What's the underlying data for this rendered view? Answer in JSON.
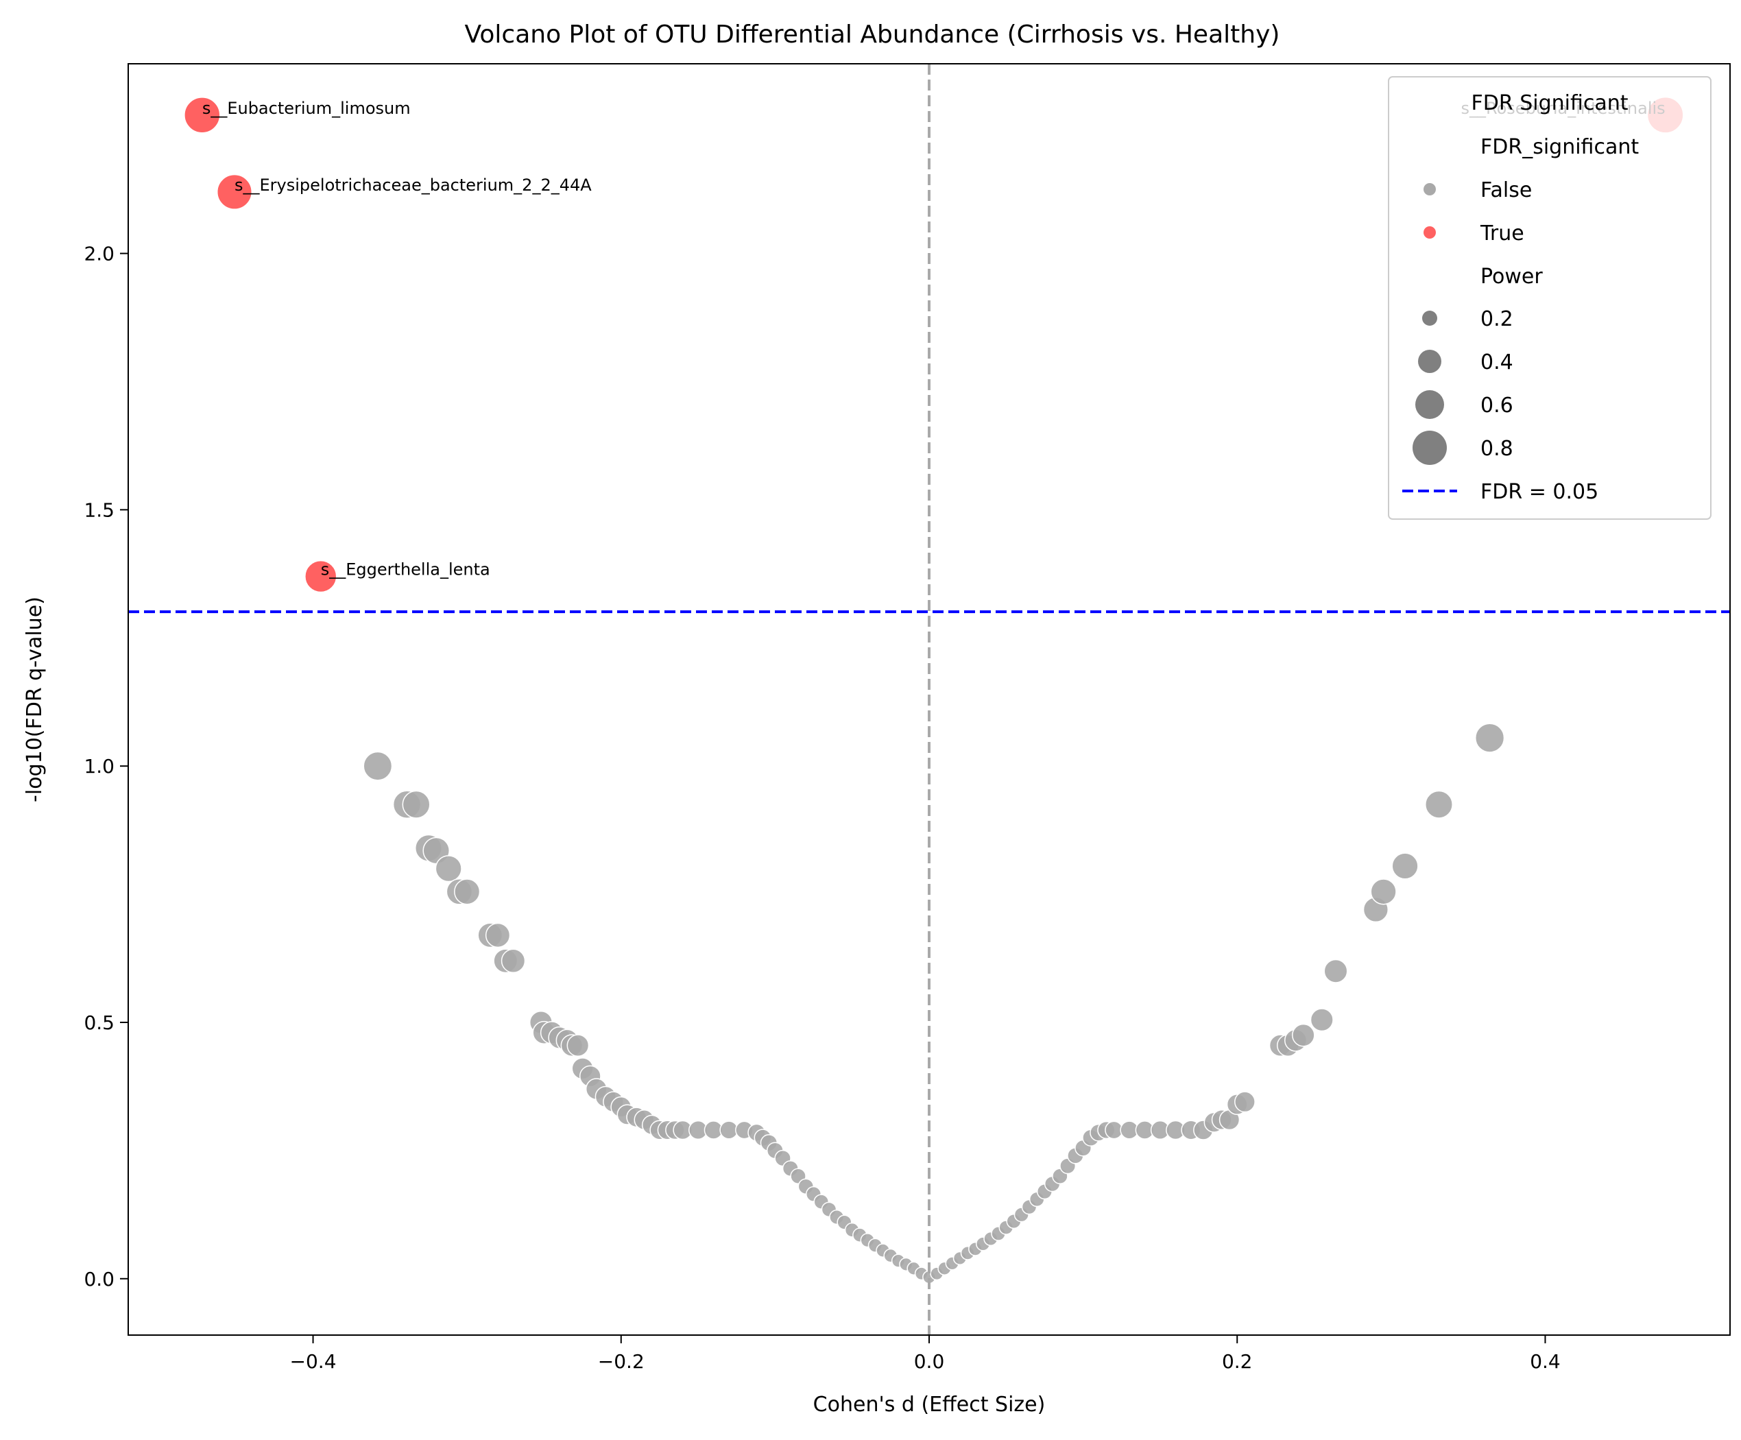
{
  "chart_data": {
    "type": "scatter",
    "title": "Volcano Plot of OTU Differential Abundance (Cirrhosis vs. Healthy)",
    "xlabel": "Cohen's d (Effect Size)",
    "ylabel": "-log10(FDR q-value)",
    "xlim": [
      -0.52,
      0.52
    ],
    "ylim": [
      -0.11,
      2.37
    ],
    "xticks": [
      -0.4,
      -0.2,
      0.0,
      0.2,
      0.4
    ],
    "xtick_labels": [
      "−0.4",
      "−0.2",
      "0.0",
      "0.2",
      "0.4"
    ],
    "yticks": [
      0.0,
      0.5,
      1.0,
      1.5,
      2.0
    ],
    "ytick_labels": [
      "0.0",
      "0.5",
      "1.0",
      "1.5",
      "2.0"
    ],
    "grid": false,
    "threshold": {
      "y": 1.301,
      "label": "FDR = 0.05",
      "color": "#0000ff"
    },
    "zero_line": {
      "x": 0.0,
      "color": "#a9a9a9"
    },
    "colors": {
      "significant": "#ff6161",
      "not_significant": "#a9a9a9",
      "legend_size": "#808080"
    },
    "legend": {
      "title": "FDR Significant",
      "placement": "top-right",
      "hue_title": "FDR_significant",
      "hue_entries": [
        "False",
        "True"
      ],
      "size_title": "Power",
      "size_entries": [
        {
          "label": "0.2",
          "power": 0.2
        },
        {
          "label": "0.4",
          "power": 0.4
        },
        {
          "label": "0.6",
          "power": 0.6
        },
        {
          "label": "0.8",
          "power": 0.8
        }
      ],
      "line_entry": "FDR = 0.05"
    },
    "significant_points": [
      {
        "x": -0.472,
        "y": 2.27,
        "power": 0.78,
        "label": "s__Eubacterium_limosum"
      },
      {
        "x": -0.451,
        "y": 2.12,
        "power": 0.75,
        "label": "s__Erysipelotrichaceae_bacterium_2_2_44A"
      },
      {
        "x": -0.395,
        "y": 1.37,
        "power": 0.65,
        "label": "s__Eggerthella_lenta"
      },
      {
        "x": 0.478,
        "y": 2.27,
        "power": 0.79,
        "label": "s__Roseburia_intestinalis"
      }
    ],
    "nonsignificant_points": [
      {
        "x": -0.358,
        "y": 1.0,
        "power": 0.55
      },
      {
        "x": -0.339,
        "y": 0.925,
        "power": 0.52
      },
      {
        "x": -0.333,
        "y": 0.925,
        "power": 0.51
      },
      {
        "x": -0.325,
        "y": 0.84,
        "power": 0.49
      },
      {
        "x": -0.32,
        "y": 0.835,
        "power": 0.48
      },
      {
        "x": -0.312,
        "y": 0.8,
        "power": 0.47
      },
      {
        "x": -0.305,
        "y": 0.755,
        "power": 0.46
      },
      {
        "x": -0.3,
        "y": 0.755,
        "power": 0.45
      },
      {
        "x": -0.285,
        "y": 0.67,
        "power": 0.42
      },
      {
        "x": -0.28,
        "y": 0.67,
        "power": 0.41
      },
      {
        "x": -0.275,
        "y": 0.62,
        "power": 0.4
      },
      {
        "x": -0.27,
        "y": 0.62,
        "power": 0.39
      },
      {
        "x": -0.252,
        "y": 0.5,
        "power": 0.36
      },
      {
        "x": -0.25,
        "y": 0.48,
        "power": 0.36
      },
      {
        "x": -0.245,
        "y": 0.48,
        "power": 0.35
      },
      {
        "x": -0.24,
        "y": 0.47,
        "power": 0.34
      },
      {
        "x": -0.235,
        "y": 0.465,
        "power": 0.34
      },
      {
        "x": -0.232,
        "y": 0.455,
        "power": 0.33
      },
      {
        "x": -0.228,
        "y": 0.455,
        "power": 0.33
      },
      {
        "x": -0.225,
        "y": 0.41,
        "power": 0.32
      },
      {
        "x": -0.22,
        "y": 0.395,
        "power": 0.31
      },
      {
        "x": -0.216,
        "y": 0.37,
        "power": 0.31
      },
      {
        "x": -0.21,
        "y": 0.355,
        "power": 0.3
      },
      {
        "x": -0.205,
        "y": 0.345,
        "power": 0.29
      },
      {
        "x": -0.2,
        "y": 0.335,
        "power": 0.29
      },
      {
        "x": -0.196,
        "y": 0.32,
        "power": 0.28
      },
      {
        "x": -0.19,
        "y": 0.315,
        "power": 0.27
      },
      {
        "x": -0.185,
        "y": 0.31,
        "power": 0.27
      },
      {
        "x": -0.18,
        "y": 0.3,
        "power": 0.26
      },
      {
        "x": -0.175,
        "y": 0.29,
        "power": 0.25
      },
      {
        "x": -0.17,
        "y": 0.29,
        "power": 0.25
      },
      {
        "x": -0.165,
        "y": 0.29,
        "power": 0.24
      },
      {
        "x": -0.16,
        "y": 0.29,
        "power": 0.24
      },
      {
        "x": -0.15,
        "y": 0.29,
        "power": 0.23
      },
      {
        "x": -0.14,
        "y": 0.29,
        "power": 0.22
      },
      {
        "x": -0.13,
        "y": 0.29,
        "power": 0.21
      },
      {
        "x": -0.12,
        "y": 0.29,
        "power": 0.2
      },
      {
        "x": -0.112,
        "y": 0.285,
        "power": 0.19
      },
      {
        "x": -0.108,
        "y": 0.275,
        "power": 0.18
      },
      {
        "x": -0.104,
        "y": 0.265,
        "power": 0.17
      },
      {
        "x": -0.1,
        "y": 0.25,
        "power": 0.16
      },
      {
        "x": -0.095,
        "y": 0.235,
        "power": 0.15
      },
      {
        "x": -0.09,
        "y": 0.215,
        "power": 0.14
      },
      {
        "x": -0.085,
        "y": 0.2,
        "power": 0.13
      },
      {
        "x": -0.08,
        "y": 0.18,
        "power": 0.13
      },
      {
        "x": -0.075,
        "y": 0.165,
        "power": 0.12
      },
      {
        "x": -0.07,
        "y": 0.15,
        "power": 0.11
      },
      {
        "x": -0.065,
        "y": 0.135,
        "power": 0.11
      },
      {
        "x": -0.06,
        "y": 0.12,
        "power": 0.1
      },
      {
        "x": -0.055,
        "y": 0.11,
        "power": 0.1
      },
      {
        "x": -0.05,
        "y": 0.095,
        "power": 0.09
      },
      {
        "x": -0.045,
        "y": 0.085,
        "power": 0.09
      },
      {
        "x": -0.04,
        "y": 0.075,
        "power": 0.08
      },
      {
        "x": -0.035,
        "y": 0.065,
        "power": 0.08
      },
      {
        "x": -0.03,
        "y": 0.055,
        "power": 0.07
      },
      {
        "x": -0.025,
        "y": 0.045,
        "power": 0.07
      },
      {
        "x": -0.02,
        "y": 0.035,
        "power": 0.06
      },
      {
        "x": -0.015,
        "y": 0.028,
        "power": 0.06
      },
      {
        "x": -0.01,
        "y": 0.02,
        "power": 0.06
      },
      {
        "x": -0.005,
        "y": 0.01,
        "power": 0.05
      },
      {
        "x": 0.0,
        "y": 0.003,
        "power": 0.05
      },
      {
        "x": 0.005,
        "y": 0.01,
        "power": 0.05
      },
      {
        "x": 0.01,
        "y": 0.02,
        "power": 0.06
      },
      {
        "x": 0.015,
        "y": 0.03,
        "power": 0.06
      },
      {
        "x": 0.02,
        "y": 0.04,
        "power": 0.06
      },
      {
        "x": 0.025,
        "y": 0.05,
        "power": 0.07
      },
      {
        "x": 0.03,
        "y": 0.058,
        "power": 0.07
      },
      {
        "x": 0.035,
        "y": 0.068,
        "power": 0.08
      },
      {
        "x": 0.04,
        "y": 0.078,
        "power": 0.08
      },
      {
        "x": 0.045,
        "y": 0.088,
        "power": 0.09
      },
      {
        "x": 0.05,
        "y": 0.1,
        "power": 0.09
      },
      {
        "x": 0.055,
        "y": 0.112,
        "power": 0.1
      },
      {
        "x": 0.06,
        "y": 0.125,
        "power": 0.1
      },
      {
        "x": 0.065,
        "y": 0.14,
        "power": 0.11
      },
      {
        "x": 0.07,
        "y": 0.155,
        "power": 0.11
      },
      {
        "x": 0.075,
        "y": 0.17,
        "power": 0.12
      },
      {
        "x": 0.08,
        "y": 0.185,
        "power": 0.13
      },
      {
        "x": 0.085,
        "y": 0.2,
        "power": 0.13
      },
      {
        "x": 0.09,
        "y": 0.22,
        "power": 0.14
      },
      {
        "x": 0.095,
        "y": 0.24,
        "power": 0.15
      },
      {
        "x": 0.1,
        "y": 0.255,
        "power": 0.16
      },
      {
        "x": 0.105,
        "y": 0.275,
        "power": 0.17
      },
      {
        "x": 0.11,
        "y": 0.285,
        "power": 0.18
      },
      {
        "x": 0.115,
        "y": 0.29,
        "power": 0.19
      },
      {
        "x": 0.12,
        "y": 0.29,
        "power": 0.2
      },
      {
        "x": 0.13,
        "y": 0.29,
        "power": 0.21
      },
      {
        "x": 0.14,
        "y": 0.29,
        "power": 0.22
      },
      {
        "x": 0.15,
        "y": 0.29,
        "power": 0.23
      },
      {
        "x": 0.16,
        "y": 0.29,
        "power": 0.24
      },
      {
        "x": 0.17,
        "y": 0.29,
        "power": 0.25
      },
      {
        "x": 0.178,
        "y": 0.29,
        "power": 0.26
      },
      {
        "x": 0.185,
        "y": 0.305,
        "power": 0.27
      },
      {
        "x": 0.19,
        "y": 0.31,
        "power": 0.27
      },
      {
        "x": 0.195,
        "y": 0.31,
        "power": 0.28
      },
      {
        "x": 0.2,
        "y": 0.34,
        "power": 0.29
      },
      {
        "x": 0.205,
        "y": 0.345,
        "power": 0.29
      },
      {
        "x": 0.228,
        "y": 0.455,
        "power": 0.33
      },
      {
        "x": 0.233,
        "y": 0.455,
        "power": 0.33
      },
      {
        "x": 0.238,
        "y": 0.465,
        "power": 0.34
      },
      {
        "x": 0.243,
        "y": 0.475,
        "power": 0.35
      },
      {
        "x": 0.255,
        "y": 0.505,
        "power": 0.36
      },
      {
        "x": 0.264,
        "y": 0.6,
        "power": 0.38
      },
      {
        "x": 0.29,
        "y": 0.72,
        "power": 0.43
      },
      {
        "x": 0.295,
        "y": 0.755,
        "power": 0.45
      },
      {
        "x": 0.309,
        "y": 0.805,
        "power": 0.47
      },
      {
        "x": 0.331,
        "y": 0.925,
        "power": 0.51
      },
      {
        "x": 0.364,
        "y": 1.055,
        "power": 0.56
      }
    ]
  }
}
